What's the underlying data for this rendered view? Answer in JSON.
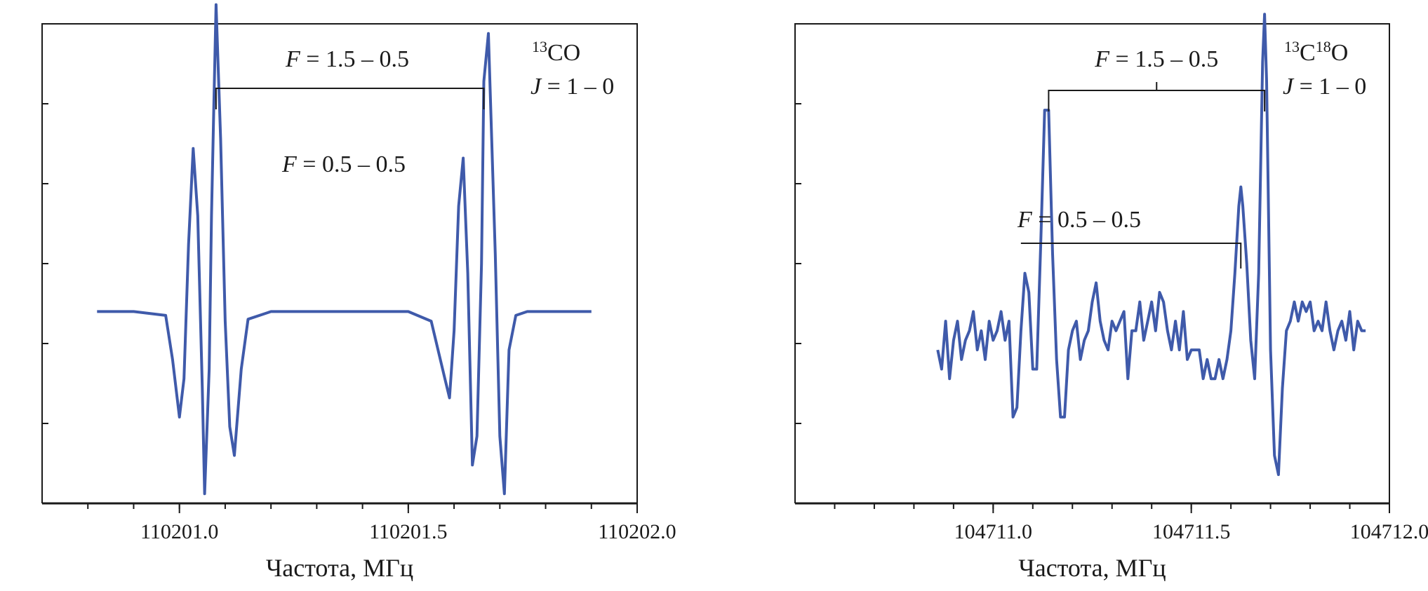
{
  "chart_data": [
    {
      "type": "line",
      "title": "",
      "xlabel": "Частота, МГц",
      "ylabel": "",
      "xlim": [
        110200.7,
        110202.0
      ],
      "ylim": [
        -1.0,
        1.5
      ],
      "grid": false,
      "x_ticks": [
        110201.0,
        110201.5,
        110202.0
      ],
      "x_tick_labels": [
        "110201.0",
        "110201.5",
        "110202.0"
      ],
      "x_minor_step": 0.1,
      "y_tick_count": 5,
      "species": {
        "iso1": "13",
        "base1": "CO",
        "iso2": "",
        "base2": ""
      },
      "transition": {
        "var": "J",
        "value": " = 1 – 0"
      },
      "hfs_upper": {
        "var": "F",
        "value": " = 1.5 – 0.5",
        "x_start": 110201.08,
        "x_end": 110201.665,
        "x_label": 110201.08,
        "center_tick": false
      },
      "hfs_lower": {
        "var": "F",
        "value": " = 0.5 – 0.5"
      },
      "series": [
        {
          "color": "#3f5aaa",
          "x": [
            110200.82,
            110200.9,
            110200.97,
            110200.985,
            110201.0,
            110201.01,
            110201.02,
            110201.03,
            110201.04,
            110201.05,
            110201.055,
            110201.065,
            110201.07,
            110201.075,
            110201.08,
            110201.09,
            110201.1,
            110201.11,
            110201.12,
            110201.135,
            110201.15,
            110201.2,
            110201.3,
            110201.4,
            110201.5,
            110201.55,
            110201.58,
            110201.59,
            110201.6,
            110201.61,
            110201.62,
            110201.63,
            110201.64,
            110201.65,
            110201.66,
            110201.665,
            110201.675,
            110201.69,
            110201.7,
            110201.71,
            110201.72,
            110201.735,
            110201.76,
            110201.8,
            110201.9
          ],
          "y": [
            0.0,
            0.0,
            -0.02,
            -0.25,
            -0.55,
            -0.35,
            0.35,
            0.85,
            0.5,
            -0.4,
            -0.95,
            -0.3,
            0.5,
            1.05,
            1.6,
            0.9,
            -0.05,
            -0.6,
            -0.75,
            -0.3,
            -0.04,
            0.0,
            0.0,
            0.0,
            0.0,
            -0.05,
            -0.35,
            -0.45,
            -0.1,
            0.55,
            0.8,
            0.2,
            -0.8,
            -0.65,
            0.25,
            1.2,
            1.45,
            0.3,
            -0.65,
            -0.95,
            -0.2,
            -0.02,
            0.0,
            0.0,
            0.0
          ]
        }
      ]
    },
    {
      "type": "line",
      "title": "",
      "xlabel": "Частота, МГц",
      "ylabel": "",
      "xlim": [
        104710.5,
        104712.0
      ],
      "ylim": [
        -1.0,
        1.5
      ],
      "grid": false,
      "x_ticks": [
        104711.0,
        104711.5,
        104712.0
      ],
      "x_tick_labels": [
        "104711.0",
        "104711.5",
        "104712.0"
      ],
      "x_minor_step": 0.1,
      "y_tick_count": 5,
      "species": {
        "iso1": "13",
        "base1": "C",
        "iso2": "18",
        "base2": "O"
      },
      "transition": {
        "var": "J",
        "value": " = 1 – 0"
      },
      "hfs_upper": {
        "var": "F",
        "value": " = 1.5 – 0.5",
        "x_start": 104711.14,
        "x_end": 104711.685,
        "x_label": 104711.4,
        "center_tick": true
      },
      "hfs_lower": {
        "var": "F",
        "value": " = 0.5 – 0.5",
        "x_start": 104711.07,
        "x_end": 104711.625,
        "x_label": 104711.37
      },
      "series": [
        {
          "color": "#3f5aaa",
          "x": [
            104710.86,
            104710.87,
            104710.88,
            104710.89,
            104710.9,
            104710.91,
            104710.92,
            104710.93,
            104710.94,
            104710.95,
            104710.96,
            104710.97,
            104710.98,
            104710.99,
            104711.0,
            104711.01,
            104711.02,
            104711.03,
            104711.04,
            104711.05,
            104711.06,
            104711.07,
            104711.08,
            104711.09,
            104711.1,
            104711.11,
            104711.12,
            104711.13,
            104711.14,
            104711.15,
            104711.16,
            104711.17,
            104711.18,
            104711.19,
            104711.2,
            104711.21,
            104711.22,
            104711.23,
            104711.24,
            104711.25,
            104711.26,
            104711.27,
            104711.28,
            104711.29,
            104711.3,
            104711.31,
            104711.32,
            104711.33,
            104711.34,
            104711.35,
            104711.36,
            104711.37,
            104711.38,
            104711.39,
            104711.4,
            104711.41,
            104711.42,
            104711.43,
            104711.44,
            104711.45,
            104711.46,
            104711.47,
            104711.48,
            104711.49,
            104711.5,
            104711.51,
            104711.52,
            104711.53,
            104711.54,
            104711.55,
            104711.56,
            104711.57,
            104711.58,
            104711.59,
            104711.6,
            104711.61,
            104711.62,
            104711.625,
            104711.63,
            104711.64,
            104711.65,
            104711.66,
            104711.67,
            104711.68,
            104711.685,
            104711.69,
            104711.7,
            104711.71,
            104711.72,
            104711.73,
            104711.74,
            104711.75,
            104711.76,
            104711.77,
            104711.78,
            104711.79,
            104711.8,
            104711.81,
            104711.82,
            104711.83,
            104711.84,
            104711.85,
            104711.86,
            104711.87,
            104711.88,
            104711.89,
            104711.9,
            104711.91,
            104711.92,
            104711.93,
            104711.94
          ],
          "y": [
            -0.2,
            -0.3,
            -0.05,
            -0.35,
            -0.15,
            -0.05,
            -0.25,
            -0.15,
            -0.1,
            0.0,
            -0.2,
            -0.1,
            -0.25,
            -0.05,
            -0.15,
            -0.1,
            0.0,
            -0.15,
            -0.05,
            -0.55,
            -0.5,
            -0.1,
            0.2,
            0.1,
            -0.3,
            -0.3,
            0.35,
            1.05,
            1.05,
            0.3,
            -0.25,
            -0.55,
            -0.55,
            -0.2,
            -0.1,
            -0.05,
            -0.25,
            -0.15,
            -0.1,
            0.05,
            0.15,
            -0.05,
            -0.15,
            -0.2,
            -0.05,
            -0.1,
            -0.05,
            0.0,
            -0.35,
            -0.1,
            -0.1,
            0.05,
            -0.15,
            -0.05,
            0.05,
            -0.1,
            0.1,
            0.05,
            -0.1,
            -0.2,
            -0.05,
            -0.2,
            0.0,
            -0.25,
            -0.2,
            -0.2,
            -0.2,
            -0.35,
            -0.25,
            -0.35,
            -0.35,
            -0.25,
            -0.35,
            -0.25,
            -0.1,
            0.2,
            0.55,
            0.65,
            0.55,
            0.25,
            -0.15,
            -0.35,
            0.2,
            1.3,
            1.55,
            1.2,
            -0.2,
            -0.75,
            -0.85,
            -0.4,
            -0.1,
            -0.05,
            0.05,
            -0.05,
            0.05,
            0.0,
            0.05,
            -0.1,
            -0.05,
            -0.1,
            0.05,
            -0.1,
            -0.2,
            -0.1,
            -0.05,
            -0.15,
            0.0,
            -0.2,
            -0.05,
            -0.1,
            -0.1
          ]
        }
      ]
    }
  ]
}
